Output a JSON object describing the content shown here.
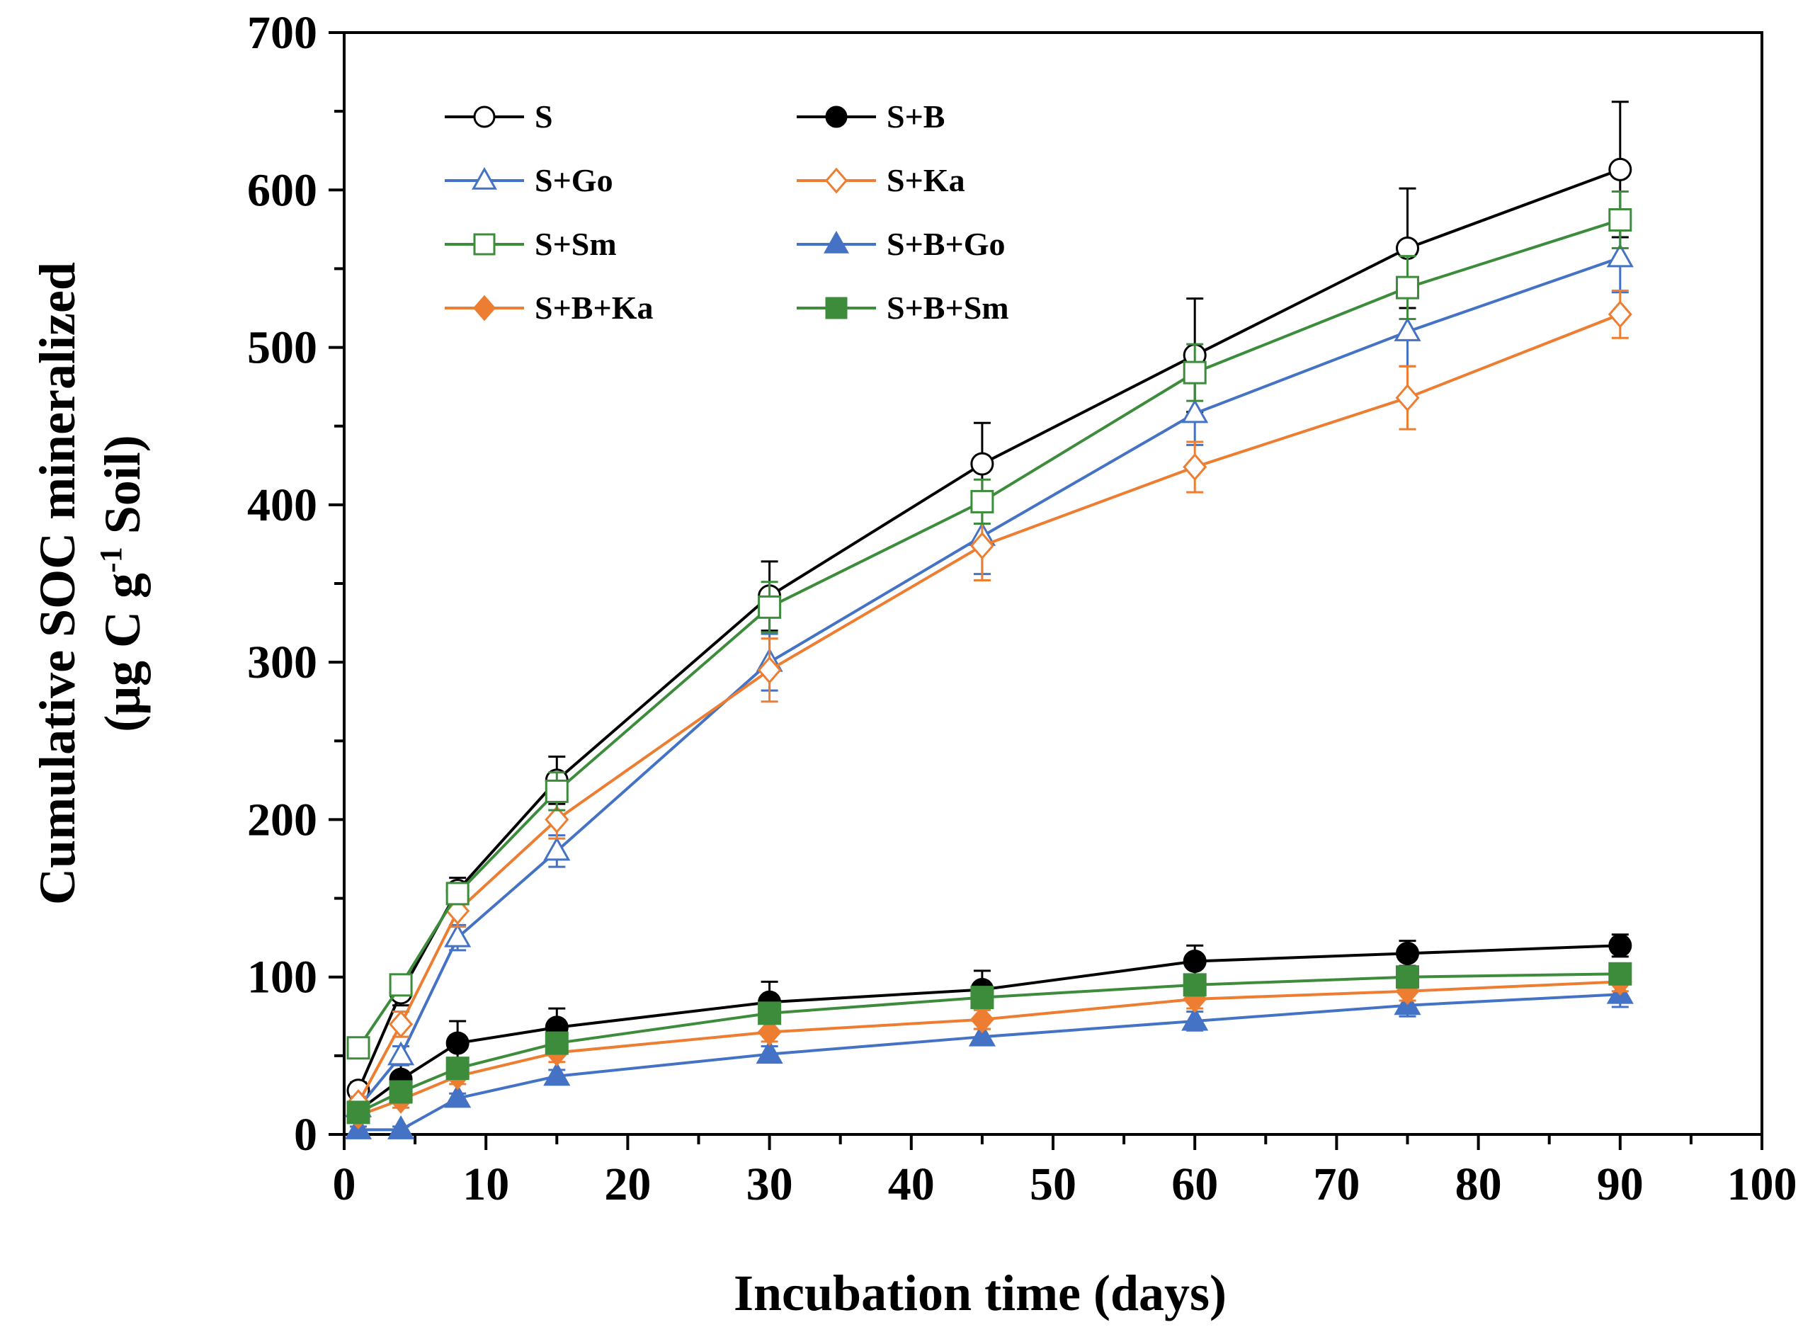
{
  "chart_data": {
    "type": "line",
    "title": "",
    "xlabel": "Incubation time (days)",
    "ylabel_line1": "Cumulative SOC mineralized",
    "ylabel_line2_prefix": "(μg C g",
    "ylabel_line2_sup": "-1",
    "ylabel_line2_suffix": " Soil)",
    "xlim": [
      0,
      100
    ],
    "ylim": [
      0,
      700
    ],
    "xticks": [
      "0",
      "10",
      "20",
      "30",
      "40",
      "50",
      "60",
      "70",
      "80",
      "90",
      "100"
    ],
    "yticks": [
      "0",
      "100",
      "200",
      "300",
      "400",
      "500",
      "600",
      "700"
    ],
    "x": [
      1,
      4,
      8,
      15,
      30,
      45,
      60,
      75,
      90
    ],
    "legend_position": "top-left",
    "series": [
      {
        "name": "S",
        "color": "#000000",
        "marker": "circle",
        "filled": false,
        "values": [
          28,
          90,
          155,
          225,
          342,
          426,
          495,
          563,
          613
        ],
        "errors": [
          5,
          8,
          8,
          15,
          22,
          26,
          36,
          38,
          43
        ]
      },
      {
        "name": "S+B",
        "color": "#000000",
        "marker": "circle",
        "filled": true,
        "values": [
          15,
          35,
          58,
          68,
          84,
          92,
          110,
          115,
          120
        ],
        "errors": [
          5,
          10,
          14,
          12,
          13,
          12,
          10,
          8,
          7
        ]
      },
      {
        "name": "S+Go",
        "color": "#4472C4",
        "marker": "triangle",
        "filled": false,
        "values": [
          17,
          50,
          125,
          180,
          300,
          380,
          458,
          510,
          557
        ],
        "errors": [
          4,
          6,
          8,
          10,
          18,
          24,
          20,
          22,
          22
        ]
      },
      {
        "name": "S+Ka",
        "color": "#ED7D31",
        "marker": "diamond",
        "filled": false,
        "values": [
          20,
          70,
          142,
          200,
          295,
          374,
          424,
          468,
          521
        ],
        "errors": [
          4,
          8,
          10,
          12,
          20,
          22,
          16,
          20,
          15
        ]
      },
      {
        "name": "S+Sm",
        "color": "#3C8C3C",
        "marker": "square",
        "filled": false,
        "values": [
          55,
          95,
          153,
          218,
          335,
          402,
          484,
          538,
          581
        ],
        "errors": [
          5,
          6,
          6,
          12,
          16,
          14,
          18,
          20,
          18
        ]
      },
      {
        "name": "S+B+Go",
        "color": "#4472C4",
        "marker": "triangle",
        "filled": true,
        "values": [
          3,
          3,
          23,
          37,
          51,
          62,
          72,
          82,
          89
        ],
        "errors": [
          2,
          2,
          3,
          4,
          5,
          5,
          6,
          7,
          8
        ]
      },
      {
        "name": "S+B+Ka",
        "color": "#ED7D31",
        "marker": "diamond",
        "filled": true,
        "values": [
          12,
          22,
          37,
          52,
          65,
          73,
          86,
          91,
          97
        ],
        "errors": [
          3,
          5,
          5,
          6,
          6,
          6,
          6,
          6,
          6
        ]
      },
      {
        "name": "S+B+Sm",
        "color": "#3C8C3C",
        "marker": "square",
        "filled": true,
        "values": [
          14,
          27,
          42,
          58,
          77,
          87,
          95,
          100,
          102
        ],
        "errors": [
          3,
          5,
          5,
          6,
          6,
          6,
          6,
          6,
          6
        ]
      }
    ]
  }
}
